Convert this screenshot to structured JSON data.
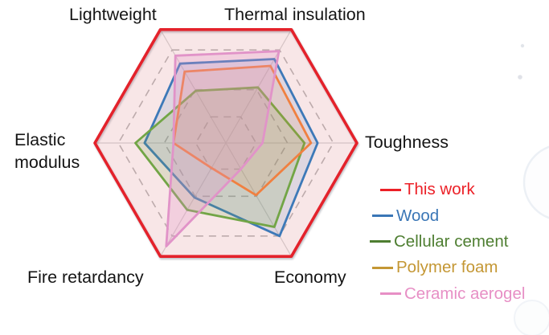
{
  "chart_data": {
    "type": "radar",
    "title": "",
    "categories": [
      "Lightweight",
      "Thermal insulation",
      "Toughness",
      "Economy",
      "Fire retardancy",
      "Elastic modulus"
    ],
    "angles_deg": [
      120,
      60,
      0,
      -60,
      -120,
      180
    ],
    "value_range": [
      0,
      1
    ],
    "grid_levels": [
      0.23,
      0.47,
      0.82
    ],
    "grid_style": "dashed",
    "legend_position": "bottom-right",
    "series": [
      {
        "name": "This work",
        "color": "#e4222b",
        "legend_color": "#ec2027",
        "fill_opacity": 0.09,
        "stroke_width": 3.6,
        "values": [
          1,
          1,
          1,
          1,
          1,
          1
        ]
      },
      {
        "name": "Wood",
        "color": "#3d79b8",
        "legend_color": "#3a76b6",
        "fill_opacity": 0.14,
        "stroke_width": 2.8,
        "values": [
          0.7,
          0.74,
          0.7,
          0.82,
          0.48,
          0.62
        ]
      },
      {
        "name": "Cellular cement",
        "color": "#72a546",
        "legend_color": "#4e7e31",
        "fill_opacity": 0.18,
        "stroke_width": 2.8,
        "values": [
          0.46,
          0.49,
          0.6,
          0.74,
          0.59,
          0.69
        ]
      },
      {
        "name": "Polymer foam",
        "color": "#f08040",
        "legend_color": "#c49734",
        "fill_opacity": 0.13,
        "stroke_width": 2.8,
        "values": [
          0.63,
          0.68,
          0.65,
          0.46,
          0.22,
          0.4
        ]
      },
      {
        "name": "Ceramic aerogel",
        "color": "#e193c8",
        "legend_color": "#e78fc5",
        "fill_opacity": 0.28,
        "stroke_width": 2.8,
        "values": [
          0.77,
          0.81,
          0.28,
          0.23,
          0.91,
          0.4
        ]
      }
    ]
  }
}
